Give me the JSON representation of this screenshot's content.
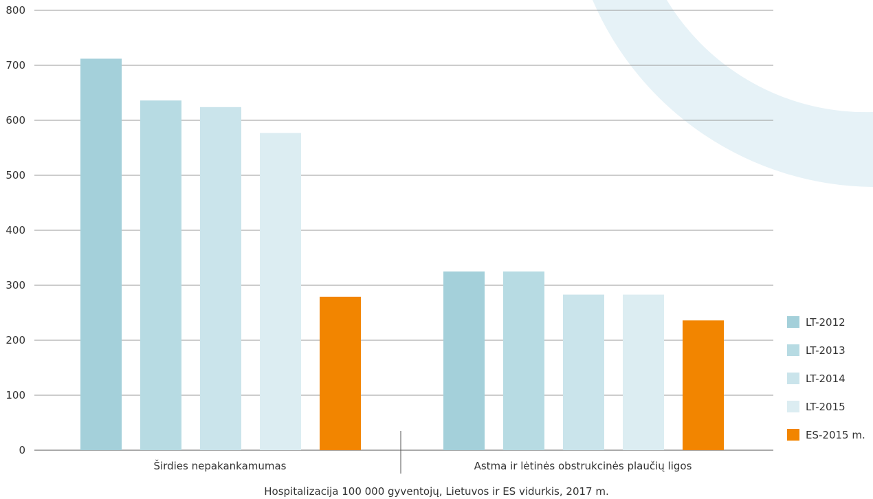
{
  "chart_data": {
    "type": "bar",
    "title": "Hospitalizacija 100 000 gyventojų, Lietuvos ir  ES vidurkis, 2017 m.",
    "categories": [
      "Širdies nepakankamumas",
      "Astma ir lėtinės obstrukcinės plaučių ligos"
    ],
    "series": [
      {
        "name": "LT-2012",
        "color": "#a4d0da",
        "values": [
          712,
          325
        ]
      },
      {
        "name": "LT-2013",
        "color": "#b7dbe3",
        "values": [
          636,
          325
        ]
      },
      {
        "name": "LT-2014",
        "color": "#cae4eb",
        "values": [
          624,
          283
        ]
      },
      {
        "name": "LT-2015",
        "color": "#dcedf2",
        "values": [
          577,
          283
        ]
      },
      {
        "name": "ES-2015 m.",
        "color": "#f28500",
        "values": [
          279,
          236
        ]
      }
    ],
    "ylim": [
      0,
      800
    ],
    "yticks": [
      0,
      100,
      200,
      300,
      400,
      500,
      600,
      700,
      800
    ],
    "xlabel": "",
    "ylabel": "",
    "grid": true,
    "legend_position": "bottom-right",
    "decor_color": "#e6f2f7"
  }
}
